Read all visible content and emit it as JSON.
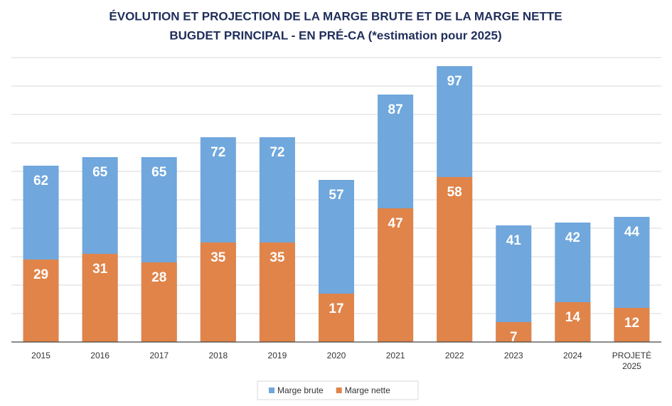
{
  "chart_data": {
    "type": "bar",
    "title": "ÉVOLUTION ET PROJECTION DE LA MARGE BRUTE ET DE LA MARGE NETTE",
    "subtitle": "BUGDET PRINCIPAL - EN PRÉ-CA (*estimation pour 2025)",
    "categories": [
      "2015",
      "2016",
      "2017",
      "2018",
      "2019",
      "2020",
      "2021",
      "2022",
      "2023",
      "2024",
      "PROJETÉ 2025"
    ],
    "series": [
      {
        "name": "Marge brute",
        "color": "#70a7dc",
        "values": [
          62,
          65,
          65,
          72,
          72,
          57,
          87,
          97,
          41,
          42,
          44
        ]
      },
      {
        "name": "Marge nette",
        "color": "#e0844a",
        "values": [
          29,
          31,
          28,
          35,
          35,
          17,
          47,
          58,
          7,
          14,
          12
        ]
      }
    ],
    "ylim": [
      0,
      100
    ],
    "yticks": [
      0,
      10,
      20,
      30,
      40,
      50,
      60,
      70,
      80,
      90,
      100
    ],
    "ytick_labels": false,
    "grid": true,
    "overlap": true,
    "legend": "bottom"
  }
}
